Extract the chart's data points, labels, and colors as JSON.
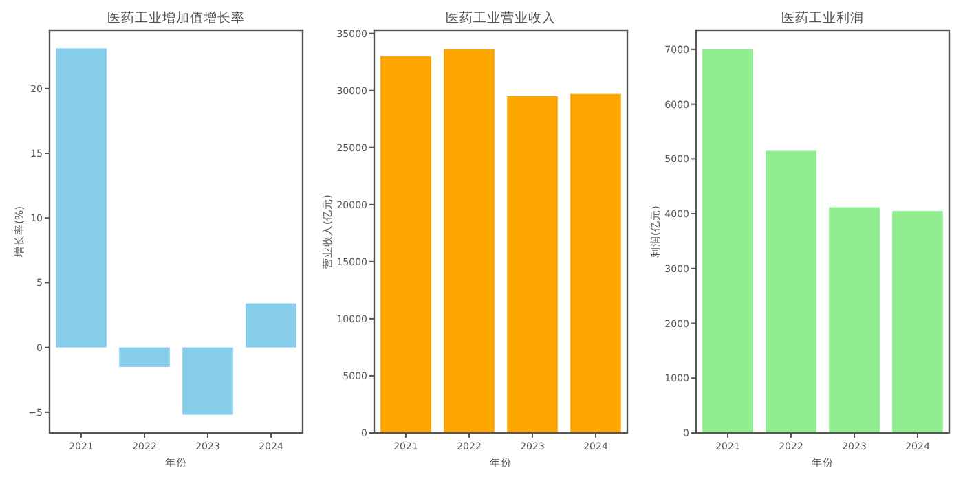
{
  "chart_data": [
    {
      "type": "bar",
      "title": "医药工业增加值增长率",
      "xlabel": "年份",
      "ylabel": "增长率(%)",
      "categories": [
        "2021",
        "2022",
        "2023",
        "2024"
      ],
      "values": [
        23.1,
        -1.5,
        -5.2,
        3.4
      ],
      "color": "#87ceeb",
      "ylim": [
        -6.6,
        24.5
      ],
      "yticks": [
        {
          "value": -5,
          "label": "−5"
        },
        0,
        5,
        10,
        15,
        20
      ]
    },
    {
      "type": "bar",
      "title": "医药工业营业收入",
      "xlabel": "年份",
      "ylabel": "营业收入(亿元)",
      "categories": [
        "2021",
        "2022",
        "2023",
        "2024"
      ],
      "values": [
        33000,
        33600,
        29500,
        29700
      ],
      "color": "#ffa500",
      "ylim": [
        0,
        35280
      ],
      "yticks": [
        0,
        5000,
        10000,
        15000,
        20000,
        25000,
        30000,
        35000
      ]
    },
    {
      "type": "bar",
      "title": "医药工业利润",
      "xlabel": "年份",
      "ylabel": "利润(亿元)",
      "categories": [
        "2021",
        "2022",
        "2023",
        "2024"
      ],
      "values": [
        7000,
        5150,
        4120,
        4050
      ],
      "color": "#90ee90",
      "ylim": [
        0,
        7350
      ],
      "yticks": [
        0,
        1000,
        2000,
        3000,
        4000,
        5000,
        6000,
        7000
      ]
    }
  ]
}
